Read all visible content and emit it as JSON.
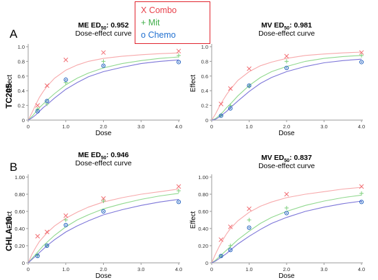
{
  "legend": {
    "items": [
      {
        "symbol": "X",
        "label": "Combo",
        "color": "#e8414b"
      },
      {
        "symbol": "+",
        "label": "Mit",
        "color": "#3fae49"
      },
      {
        "symbol": "o",
        "label": "Chemo",
        "color": "#1f6fd0"
      }
    ]
  },
  "panels": {
    "A": {
      "letter": "A",
      "row_label": "TC205"
    },
    "B": {
      "letter": "B",
      "row_label": "CHLA-10"
    }
  },
  "colors": {
    "combo_point": "#f16a6f",
    "combo_curve": "#f7a8aa",
    "mit_point": "#7dcf7c",
    "mit_curve": "#8fd88d",
    "chemo_point": "#1f5fbf",
    "chemo_curve": "#7b74d8",
    "axis": "#9a9a9a",
    "tick_text": "#333333"
  },
  "chart_data": [
    {
      "type": "scatter",
      "title_prefix": "ME ED",
      "title_sub": "50",
      "title_value": ": 0.952",
      "subtitle": "Dose-effect curve",
      "xlabel": "Dose",
      "ylabel": "Effect",
      "xlim": [
        0,
        4
      ],
      "ylim": [
        0,
        1
      ],
      "xticks": [
        "0",
        "1.0",
        "2.0",
        "3.0",
        "4.0"
      ],
      "xtick_values": [
        0,
        1,
        2,
        3,
        4
      ],
      "yticks": [
        "0",
        "0.2",
        "0.4",
        "0.6",
        "0.8",
        "1.0"
      ],
      "ytick_values": [
        0,
        0.2,
        0.4,
        0.6,
        0.8,
        1.0
      ],
      "series": [
        {
          "name": "Combo",
          "x": [
            0.25,
            0.5,
            1.0,
            2.0,
            4.0
          ],
          "y": [
            0.2,
            0.47,
            0.82,
            0.92,
            0.94
          ],
          "curve": {
            "x": [
              0,
              0.1,
              0.2,
              0.3,
              0.4,
              0.5,
              0.7,
              1,
              1.3,
              1.6,
              2,
              2.5,
              3,
              3.5,
              4
            ],
            "y": [
              0,
              0.1,
              0.21,
              0.31,
              0.39,
              0.46,
              0.57,
              0.68,
              0.75,
              0.8,
              0.84,
              0.87,
              0.89,
              0.905,
              0.915
            ]
          }
        },
        {
          "name": "Mit",
          "x": [
            0.25,
            0.5,
            1.0,
            2.0,
            4.0
          ],
          "y": [
            0.15,
            0.22,
            0.51,
            0.8,
            0.88
          ],
          "curve": {
            "x": [
              0,
              0.1,
              0.2,
              0.3,
              0.4,
              0.5,
              0.7,
              1,
              1.3,
              1.6,
              2,
              2.5,
              3,
              3.5,
              4
            ],
            "y": [
              0,
              0.05,
              0.11,
              0.17,
              0.22,
              0.27,
              0.36,
              0.48,
              0.57,
              0.64,
              0.71,
              0.77,
              0.81,
              0.84,
              0.86
            ]
          }
        },
        {
          "name": "Chemo",
          "x": [
            0.25,
            0.5,
            1.0,
            2.0,
            4.0
          ],
          "y": [
            0.12,
            0.26,
            0.55,
            0.74,
            0.79
          ],
          "curve": {
            "x": [
              0,
              0.1,
              0.2,
              0.3,
              0.4,
              0.5,
              0.7,
              1,
              1.3,
              1.6,
              2,
              2.5,
              3,
              3.5,
              4
            ],
            "y": [
              0,
              0.03,
              0.07,
              0.12,
              0.17,
              0.21,
              0.3,
              0.42,
              0.51,
              0.59,
              0.66,
              0.72,
              0.77,
              0.8,
              0.82
            ]
          }
        }
      ]
    },
    {
      "type": "scatter",
      "title_prefix": "MV ED",
      "title_sub": "50",
      "title_value": ": 0.981",
      "subtitle": "Dose-effect curve",
      "xlabel": "Dose",
      "ylabel": "Effect",
      "xlim": [
        0,
        4
      ],
      "ylim": [
        0,
        1
      ],
      "xticks": [
        "0",
        "1.0",
        "2.0",
        "3.0",
        "4.0"
      ],
      "xtick_values": [
        0,
        1,
        2,
        3,
        4
      ],
      "yticks": [
        "0",
        "0.2",
        "0.4",
        "0.6",
        "0.8",
        "1.0"
      ],
      "ytick_values": [
        0,
        0.2,
        0.4,
        0.6,
        0.8,
        1.0
      ],
      "series": [
        {
          "name": "Combo",
          "x": [
            0.25,
            0.5,
            1.0,
            2.0,
            4.0
          ],
          "y": [
            0.22,
            0.43,
            0.7,
            0.87,
            0.92
          ],
          "curve": {
            "x": [
              0,
              0.1,
              0.2,
              0.3,
              0.4,
              0.5,
              0.7,
              1,
              1.3,
              1.6,
              2,
              2.5,
              3,
              3.5,
              4
            ],
            "y": [
              0,
              0.08,
              0.18,
              0.27,
              0.35,
              0.42,
              0.54,
              0.66,
              0.74,
              0.79,
              0.84,
              0.88,
              0.9,
              0.915,
              0.925
            ]
          }
        },
        {
          "name": "Mit",
          "x": [
            0.25,
            0.5,
            1.0,
            2.0,
            4.0
          ],
          "y": [
            0.06,
            0.2,
            0.46,
            0.8,
            0.88
          ],
          "curve": {
            "x": [
              0,
              0.1,
              0.2,
              0.3,
              0.4,
              0.5,
              0.7,
              1,
              1.3,
              1.6,
              2,
              2.5,
              3,
              3.5,
              4
            ],
            "y": [
              0,
              0.02,
              0.06,
              0.11,
              0.17,
              0.22,
              0.33,
              0.47,
              0.58,
              0.66,
              0.73,
              0.8,
              0.84,
              0.865,
              0.88
            ]
          }
        },
        {
          "name": "Chemo",
          "x": [
            0.25,
            0.5,
            1.0,
            2.0,
            4.0
          ],
          "y": [
            0.06,
            0.16,
            0.47,
            0.71,
            0.79
          ],
          "curve": {
            "x": [
              0,
              0.1,
              0.2,
              0.3,
              0.4,
              0.5,
              0.7,
              1,
              1.3,
              1.6,
              2,
              2.5,
              3,
              3.5,
              4
            ],
            "y": [
              0,
              0.01,
              0.04,
              0.08,
              0.12,
              0.17,
              0.26,
              0.39,
              0.5,
              0.58,
              0.66,
              0.73,
              0.78,
              0.81,
              0.83
            ]
          }
        }
      ]
    },
    {
      "type": "scatter",
      "title_prefix": "ME ED",
      "title_sub": "50",
      "title_value": ": 0.946",
      "subtitle": "Dose-effect curve",
      "xlabel": "Dose",
      "ylabel": "Effect",
      "xlim": [
        0,
        4
      ],
      "ylim": [
        0,
        1
      ],
      "xticks": [
        "0",
        "1.0",
        "2.0",
        "3.0",
        "4.0"
      ],
      "xtick_values": [
        0,
        1,
        2,
        3,
        4
      ],
      "yticks": [
        "0",
        "0.20",
        "0.40",
        "0.60",
        "0.80",
        "1.00"
      ],
      "ytick_values": [
        0,
        0.2,
        0.4,
        0.6,
        0.8,
        1.0
      ],
      "series": [
        {
          "name": "Combo",
          "x": [
            0.25,
            0.5,
            1.0,
            2.0,
            4.0
          ],
          "y": [
            0.31,
            0.36,
            0.55,
            0.75,
            0.89
          ],
          "curve": {
            "x": [
              0,
              0.1,
              0.2,
              0.3,
              0.4,
              0.5,
              0.7,
              1,
              1.3,
              1.6,
              2,
              2.5,
              3,
              3.5,
              4
            ],
            "y": [
              0,
              0.1,
              0.18,
              0.25,
              0.3,
              0.35,
              0.43,
              0.52,
              0.59,
              0.65,
              0.71,
              0.76,
              0.8,
              0.83,
              0.86
            ]
          }
        },
        {
          "name": "Mit",
          "x": [
            0.25,
            0.5,
            1.0,
            2.0,
            4.0
          ],
          "y": [
            0.09,
            0.2,
            0.5,
            0.72,
            0.84
          ],
          "curve": {
            "x": [
              0,
              0.1,
              0.2,
              0.3,
              0.4,
              0.5,
              0.7,
              1,
              1.3,
              1.6,
              2,
              2.5,
              3,
              3.5,
              4
            ],
            "y": [
              0,
              0.05,
              0.1,
              0.15,
              0.2,
              0.24,
              0.32,
              0.42,
              0.5,
              0.56,
              0.63,
              0.69,
              0.74,
              0.78,
              0.81
            ]
          }
        },
        {
          "name": "Chemo",
          "x": [
            0.25,
            0.5,
            1.0,
            2.0,
            4.0
          ],
          "y": [
            0.08,
            0.2,
            0.44,
            0.6,
            0.71
          ],
          "curve": {
            "x": [
              0,
              0.1,
              0.2,
              0.3,
              0.4,
              0.5,
              0.7,
              1,
              1.3,
              1.6,
              2,
              2.5,
              3,
              3.5,
              4
            ],
            "y": [
              0,
              0.04,
              0.08,
              0.12,
              0.16,
              0.2,
              0.27,
              0.36,
              0.43,
              0.49,
              0.56,
              0.62,
              0.67,
              0.71,
              0.74
            ]
          }
        }
      ]
    },
    {
      "type": "scatter",
      "title_prefix": "MV ED",
      "title_sub": "50",
      "title_value": ": 0.837",
      "subtitle": "Dose-effect curve",
      "xlabel": "Dose",
      "ylabel": "Effect",
      "xlim": [
        0,
        4
      ],
      "ylim": [
        0,
        1
      ],
      "xticks": [
        "0",
        "1.0",
        "2.0",
        "3.0",
        "4.0"
      ],
      "xtick_values": [
        0,
        1,
        2,
        3,
        4
      ],
      "yticks": [
        "0",
        "0.20",
        "0.40",
        "0.60",
        "0.80",
        "1.00"
      ],
      "ytick_values": [
        0,
        0.2,
        0.4,
        0.6,
        0.8,
        1.0
      ],
      "series": [
        {
          "name": "Combo",
          "x": [
            0.25,
            0.5,
            1.0,
            2.0,
            4.0
          ],
          "y": [
            0.27,
            0.42,
            0.63,
            0.8,
            0.89
          ],
          "curve": {
            "x": [
              0,
              0.1,
              0.2,
              0.3,
              0.4,
              0.5,
              0.7,
              1,
              1.3,
              1.6,
              2,
              2.5,
              3,
              3.5,
              4
            ],
            "y": [
              0,
              0.1,
              0.19,
              0.27,
              0.34,
              0.4,
              0.49,
              0.59,
              0.66,
              0.71,
              0.76,
              0.8,
              0.83,
              0.86,
              0.88
            ]
          }
        },
        {
          "name": "Mit",
          "x": [
            0.25,
            0.5,
            1.0,
            2.0,
            4.0
          ],
          "y": [
            0.08,
            0.2,
            0.5,
            0.64,
            0.81
          ],
          "curve": {
            "x": [
              0,
              0.1,
              0.2,
              0.3,
              0.4,
              0.5,
              0.7,
              1,
              1.3,
              1.6,
              2,
              2.5,
              3,
              3.5,
              4
            ],
            "y": [
              0,
              0.03,
              0.07,
              0.11,
              0.15,
              0.19,
              0.27,
              0.37,
              0.46,
              0.53,
              0.6,
              0.67,
              0.72,
              0.76,
              0.79
            ]
          }
        },
        {
          "name": "Chemo",
          "x": [
            0.25,
            0.5,
            1.0,
            2.0,
            4.0
          ],
          "y": [
            0.08,
            0.15,
            0.41,
            0.58,
            0.71
          ],
          "curve": {
            "x": [
              0,
              0.1,
              0.2,
              0.3,
              0.4,
              0.5,
              0.7,
              1,
              1.3,
              1.6,
              2,
              2.5,
              3,
              3.5,
              4
            ],
            "y": [
              0,
              0.02,
              0.05,
              0.08,
              0.11,
              0.15,
              0.22,
              0.31,
              0.39,
              0.46,
              0.53,
              0.6,
              0.65,
              0.69,
              0.72
            ]
          }
        }
      ]
    }
  ]
}
